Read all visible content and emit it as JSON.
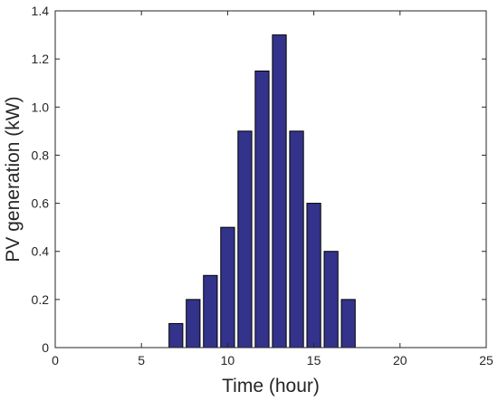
{
  "chart_data": {
    "type": "bar",
    "title": "",
    "xlabel": "Time (hour)",
    "ylabel": "PV generation (kW)",
    "x": [
      1,
      2,
      3,
      4,
      5,
      6,
      7,
      8,
      9,
      10,
      11,
      12,
      13,
      14,
      15,
      16,
      17,
      18,
      19,
      20,
      21,
      22,
      23,
      24
    ],
    "values": [
      0,
      0,
      0,
      0,
      0,
      0,
      0.1,
      0.2,
      0.3,
      0.5,
      0.9,
      1.15,
      1.3,
      0.9,
      0.6,
      0.4,
      0.2,
      0,
      0,
      0,
      0,
      0,
      0,
      0
    ],
    "xlim": [
      0,
      25
    ],
    "ylim": [
      0,
      1.4
    ],
    "xticks": [
      0,
      5,
      10,
      15,
      20,
      25
    ],
    "xtick_labels": [
      "0",
      "5",
      "10",
      "15",
      "20",
      "25"
    ],
    "yticks": [
      0,
      0.2,
      0.4,
      0.6,
      0.8,
      1.0,
      1.2,
      1.4
    ],
    "ytick_labels": [
      "0",
      "0.2",
      "0.4",
      "0.6",
      "0.8",
      "1.0",
      "1.2",
      "1.4"
    ],
    "bar_width": 0.8,
    "grid": false,
    "legend": "none",
    "colors": {
      "bar_fill": "#33338c",
      "bar_edge": "#000000",
      "axis": "#262626"
    }
  }
}
